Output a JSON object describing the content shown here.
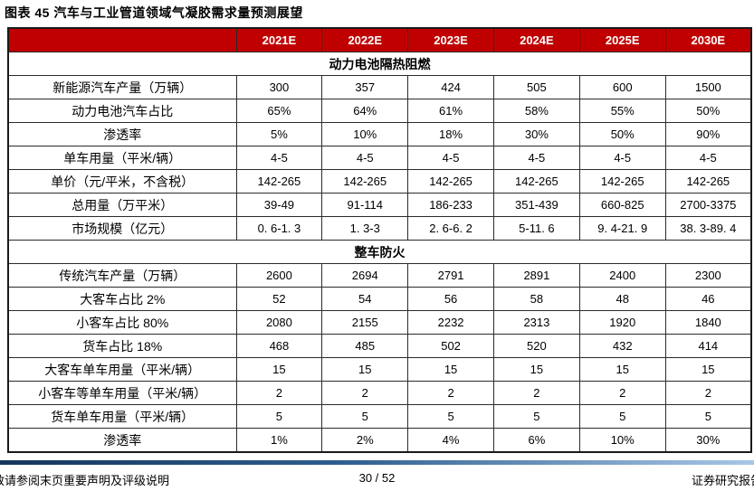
{
  "title": "图表 45 汽车与工业管道领域气凝胶需求量预测展望",
  "table": {
    "columns": [
      "2021E",
      "2022E",
      "2023E",
      "2024E",
      "2025E",
      "2030E"
    ],
    "sections": [
      {
        "header": "动力电池隔热阻燃",
        "rows": [
          {
            "label": "新能源汽车产量（万辆）",
            "values": [
              "300",
              "357",
              "424",
              "505",
              "600",
              "1500"
            ]
          },
          {
            "label": "动力电池汽车占比",
            "values": [
              "65%",
              "64%",
              "61%",
              "58%",
              "55%",
              "50%"
            ]
          },
          {
            "label": "渗透率",
            "values": [
              "5%",
              "10%",
              "18%",
              "30%",
              "50%",
              "90%"
            ]
          },
          {
            "label": "单车用量（平米/辆）",
            "values": [
              "4-5",
              "4-5",
              "4-5",
              "4-5",
              "4-5",
              "4-5"
            ]
          },
          {
            "label": "单价（元/平米，不含税）",
            "values": [
              "142-265",
              "142-265",
              "142-265",
              "142-265",
              "142-265",
              "142-265"
            ]
          },
          {
            "label": "总用量（万平米）",
            "values": [
              "39-49",
              "91-114",
              "186-233",
              "351-439",
              "660-825",
              "2700-3375"
            ]
          },
          {
            "label": "市场规模（亿元）",
            "values": [
              "0. 6-1. 3",
              "1. 3-3",
              "2. 6-6. 2",
              "5-11. 6",
              "9. 4-21. 9",
              "38. 3-89. 4"
            ]
          }
        ]
      },
      {
        "header": "整车防火",
        "rows": [
          {
            "label": "传统汽车产量（万辆）",
            "values": [
              "2600",
              "2694",
              "2791",
              "2891",
              "2400",
              "2300"
            ]
          },
          {
            "label": "大客车占比 2%",
            "values": [
              "52",
              "54",
              "56",
              "58",
              "48",
              "46"
            ]
          },
          {
            "label": "小客车占比 80%",
            "values": [
              "2080",
              "2155",
              "2232",
              "2313",
              "1920",
              "1840"
            ]
          },
          {
            "label": "货车占比 18%",
            "values": [
              "468",
              "485",
              "502",
              "520",
              "432",
              "414"
            ]
          },
          {
            "label": "大客车单车用量（平米/辆）",
            "values": [
              "15",
              "15",
              "15",
              "15",
              "15",
              "15"
            ]
          },
          {
            "label": "小客车等单车用量（平米/辆）",
            "values": [
              "2",
              "2",
              "2",
              "2",
              "2",
              "2"
            ]
          },
          {
            "label": "货车单车用量（平米/辆）",
            "values": [
              "5",
              "5",
              "5",
              "5",
              "5",
              "5"
            ]
          },
          {
            "label": "渗透率",
            "values": [
              "1%",
              "2%",
              "4%",
              "6%",
              "10%",
              "30%"
            ]
          }
        ]
      }
    ]
  },
  "chart_data": {
    "type": "table",
    "title": "汽车与工业管道领域气凝胶需求量预测展望",
    "categories": [
      "2021E",
      "2022E",
      "2023E",
      "2024E",
      "2025E",
      "2030E"
    ],
    "series": [
      {
        "name": "新能源汽车产量（万辆）",
        "values": [
          300,
          357,
          424,
          505,
          600,
          1500
        ]
      },
      {
        "name": "动力电池汽车占比",
        "values": [
          "65%",
          "64%",
          "61%",
          "58%",
          "55%",
          "50%"
        ]
      },
      {
        "name": "渗透率（动力电池隔热阻燃）",
        "values": [
          "5%",
          "10%",
          "18%",
          "30%",
          "50%",
          "90%"
        ]
      },
      {
        "name": "单车用量（平米/辆）",
        "values": [
          "4-5",
          "4-5",
          "4-5",
          "4-5",
          "4-5",
          "4-5"
        ]
      },
      {
        "name": "单价（元/平米，不含税）",
        "values": [
          "142-265",
          "142-265",
          "142-265",
          "142-265",
          "142-265",
          "142-265"
        ]
      },
      {
        "name": "总用量（万平米）",
        "values": [
          "39-49",
          "91-114",
          "186-233",
          "351-439",
          "660-825",
          "2700-3375"
        ]
      },
      {
        "name": "市场规模（亿元）",
        "values": [
          "0.6-1.3",
          "1.3-3",
          "2.6-6.2",
          "5-11.6",
          "9.4-21.9",
          "38.3-89.4"
        ]
      },
      {
        "name": "传统汽车产量（万辆）",
        "values": [
          2600,
          2694,
          2791,
          2891,
          2400,
          2300
        ]
      },
      {
        "name": "大客车占比 2%",
        "values": [
          52,
          54,
          56,
          58,
          48,
          46
        ]
      },
      {
        "name": "小客车占比 80%",
        "values": [
          2080,
          2155,
          2232,
          2313,
          1920,
          1840
        ]
      },
      {
        "name": "货车占比 18%",
        "values": [
          468,
          485,
          502,
          520,
          432,
          414
        ]
      },
      {
        "name": "大客车单车用量（平米/辆）",
        "values": [
          15,
          15,
          15,
          15,
          15,
          15
        ]
      },
      {
        "name": "小客车等单车用量（平米/辆）",
        "values": [
          2,
          2,
          2,
          2,
          2,
          2
        ]
      },
      {
        "name": "货车单车用量（平米/辆）",
        "values": [
          5,
          5,
          5,
          5,
          5,
          5
        ]
      },
      {
        "name": "渗透率（整车防火）",
        "values": [
          "1%",
          "2%",
          "4%",
          "6%",
          "10%",
          "30%"
        ]
      }
    ]
  },
  "footer": {
    "disclaimer": "敬请参阅末页重要声明及评级说明",
    "page": "30 / 52",
    "report_type": "证券研究报告"
  },
  "colors": {
    "header_red": "#c00000",
    "footer_gradient_start": "#16365c",
    "footer_gradient_end": "#a9c7e7",
    "text": "#000000"
  }
}
